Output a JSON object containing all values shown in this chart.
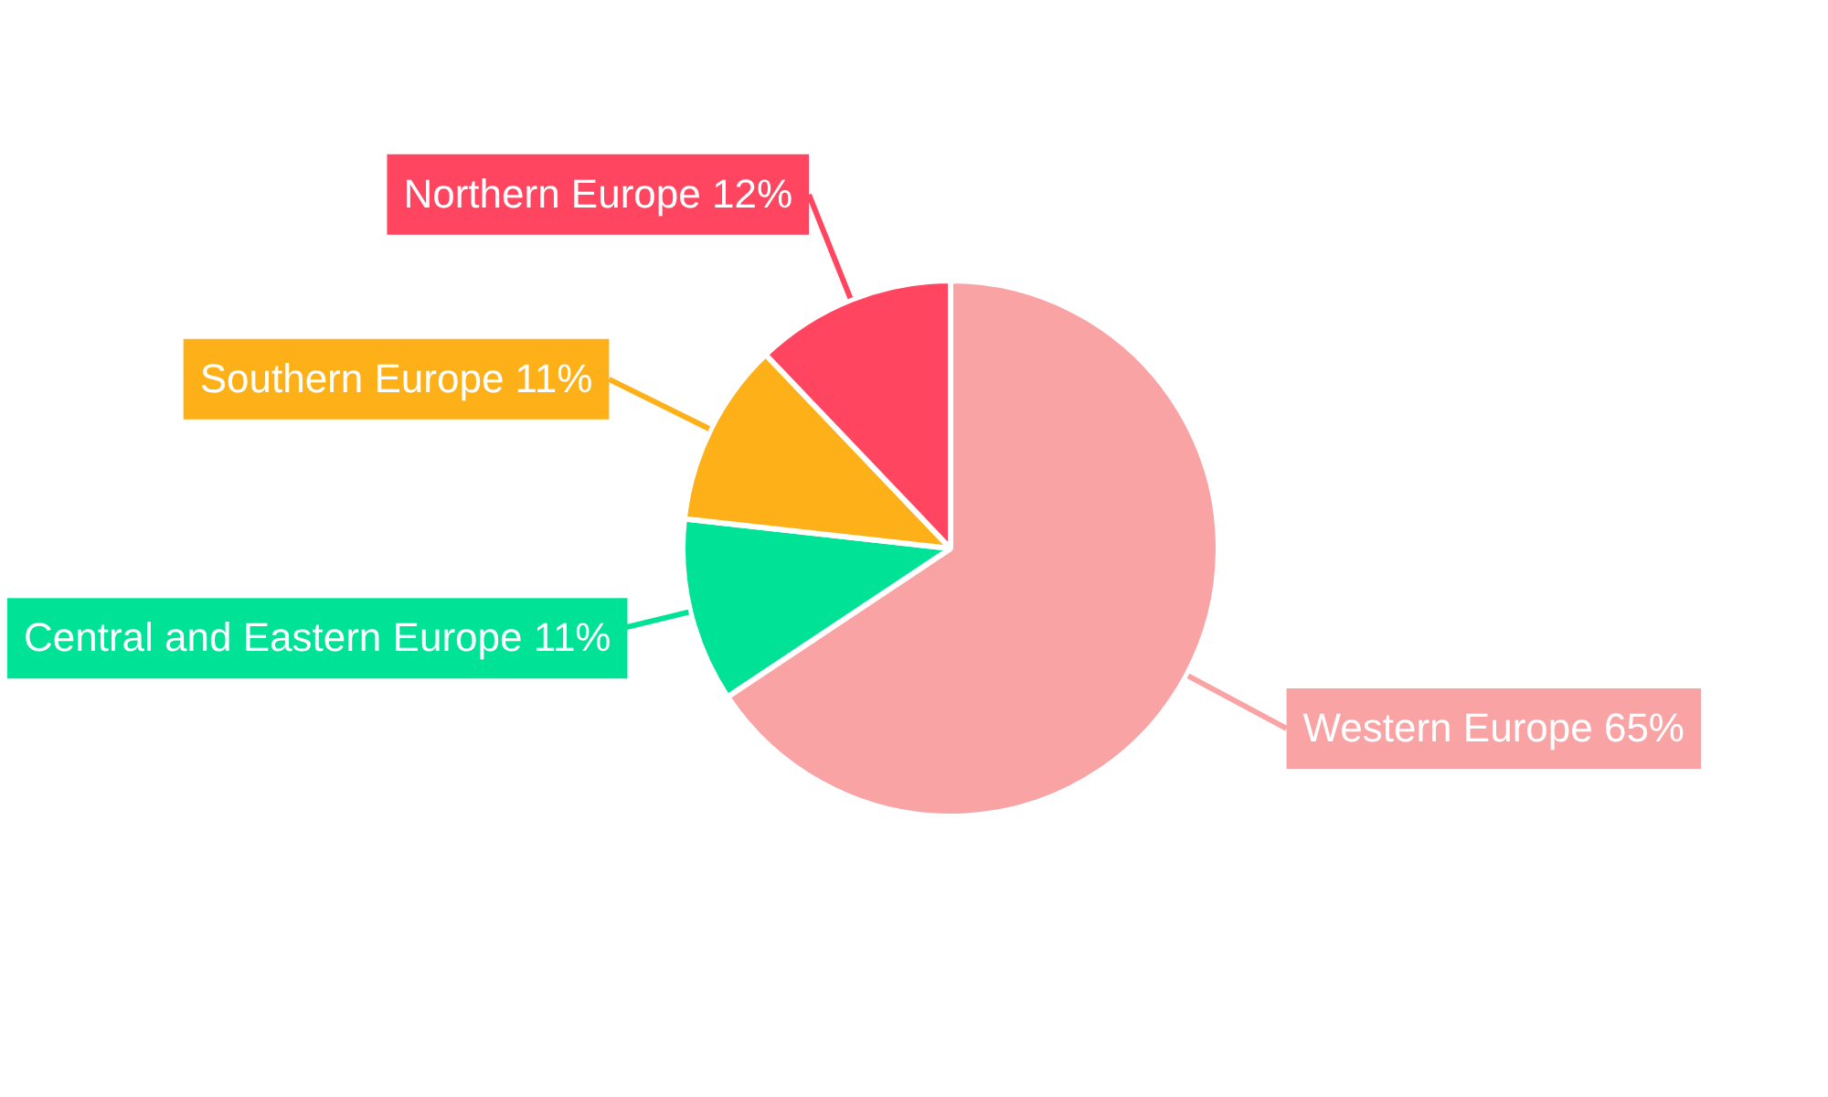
{
  "chart_data": {
    "type": "pie",
    "categories": [
      "Western Europe",
      "Central and Eastern Europe",
      "Southern Europe",
      "Northern Europe"
    ],
    "values": [
      65,
      11,
      11,
      12
    ],
    "colors": [
      "#f9a3a4",
      "#00e396",
      "#feb019",
      "#ff4560"
    ],
    "value_labels": [
      "65%",
      "11%",
      "11%",
      "12%"
    ],
    "legend": false
  }
}
